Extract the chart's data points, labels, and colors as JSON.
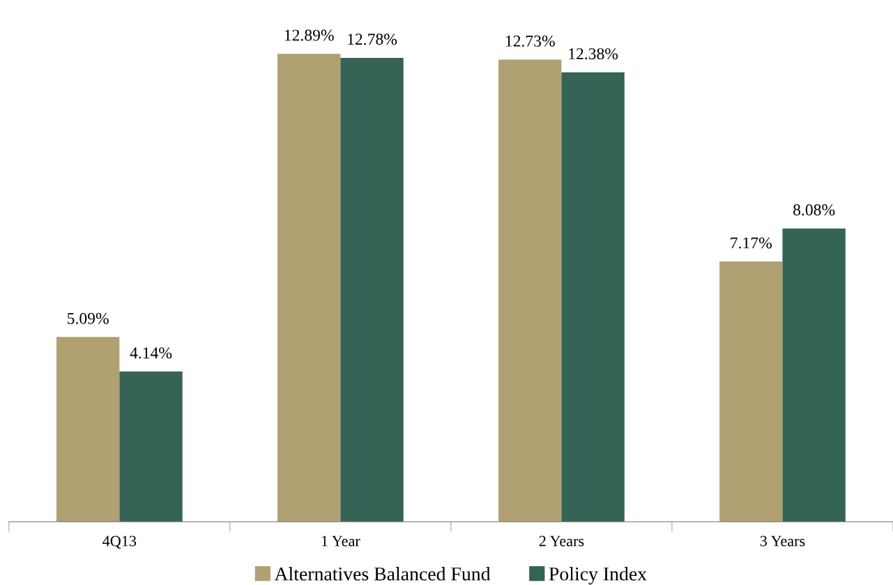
{
  "chart_data": {
    "type": "bar",
    "categories": [
      "4Q13",
      "1 Year",
      "2 Years",
      "3 Years"
    ],
    "series": [
      {
        "name": "Alternatives Balanced Fund",
        "color": "#b1a072",
        "values": [
          5.09,
          12.89,
          12.73,
          7.17
        ],
        "value_labels": [
          "5.09%",
          "12.89%",
          "12.73%",
          "7.17%"
        ]
      },
      {
        "name": "Policy Index",
        "color": "#356356",
        "values": [
          4.14,
          12.78,
          12.38,
          8.08
        ],
        "value_labels": [
          "4.14%",
          "12.78%",
          "12.38%",
          "8.08%"
        ]
      }
    ],
    "legend": "bottom"
  }
}
